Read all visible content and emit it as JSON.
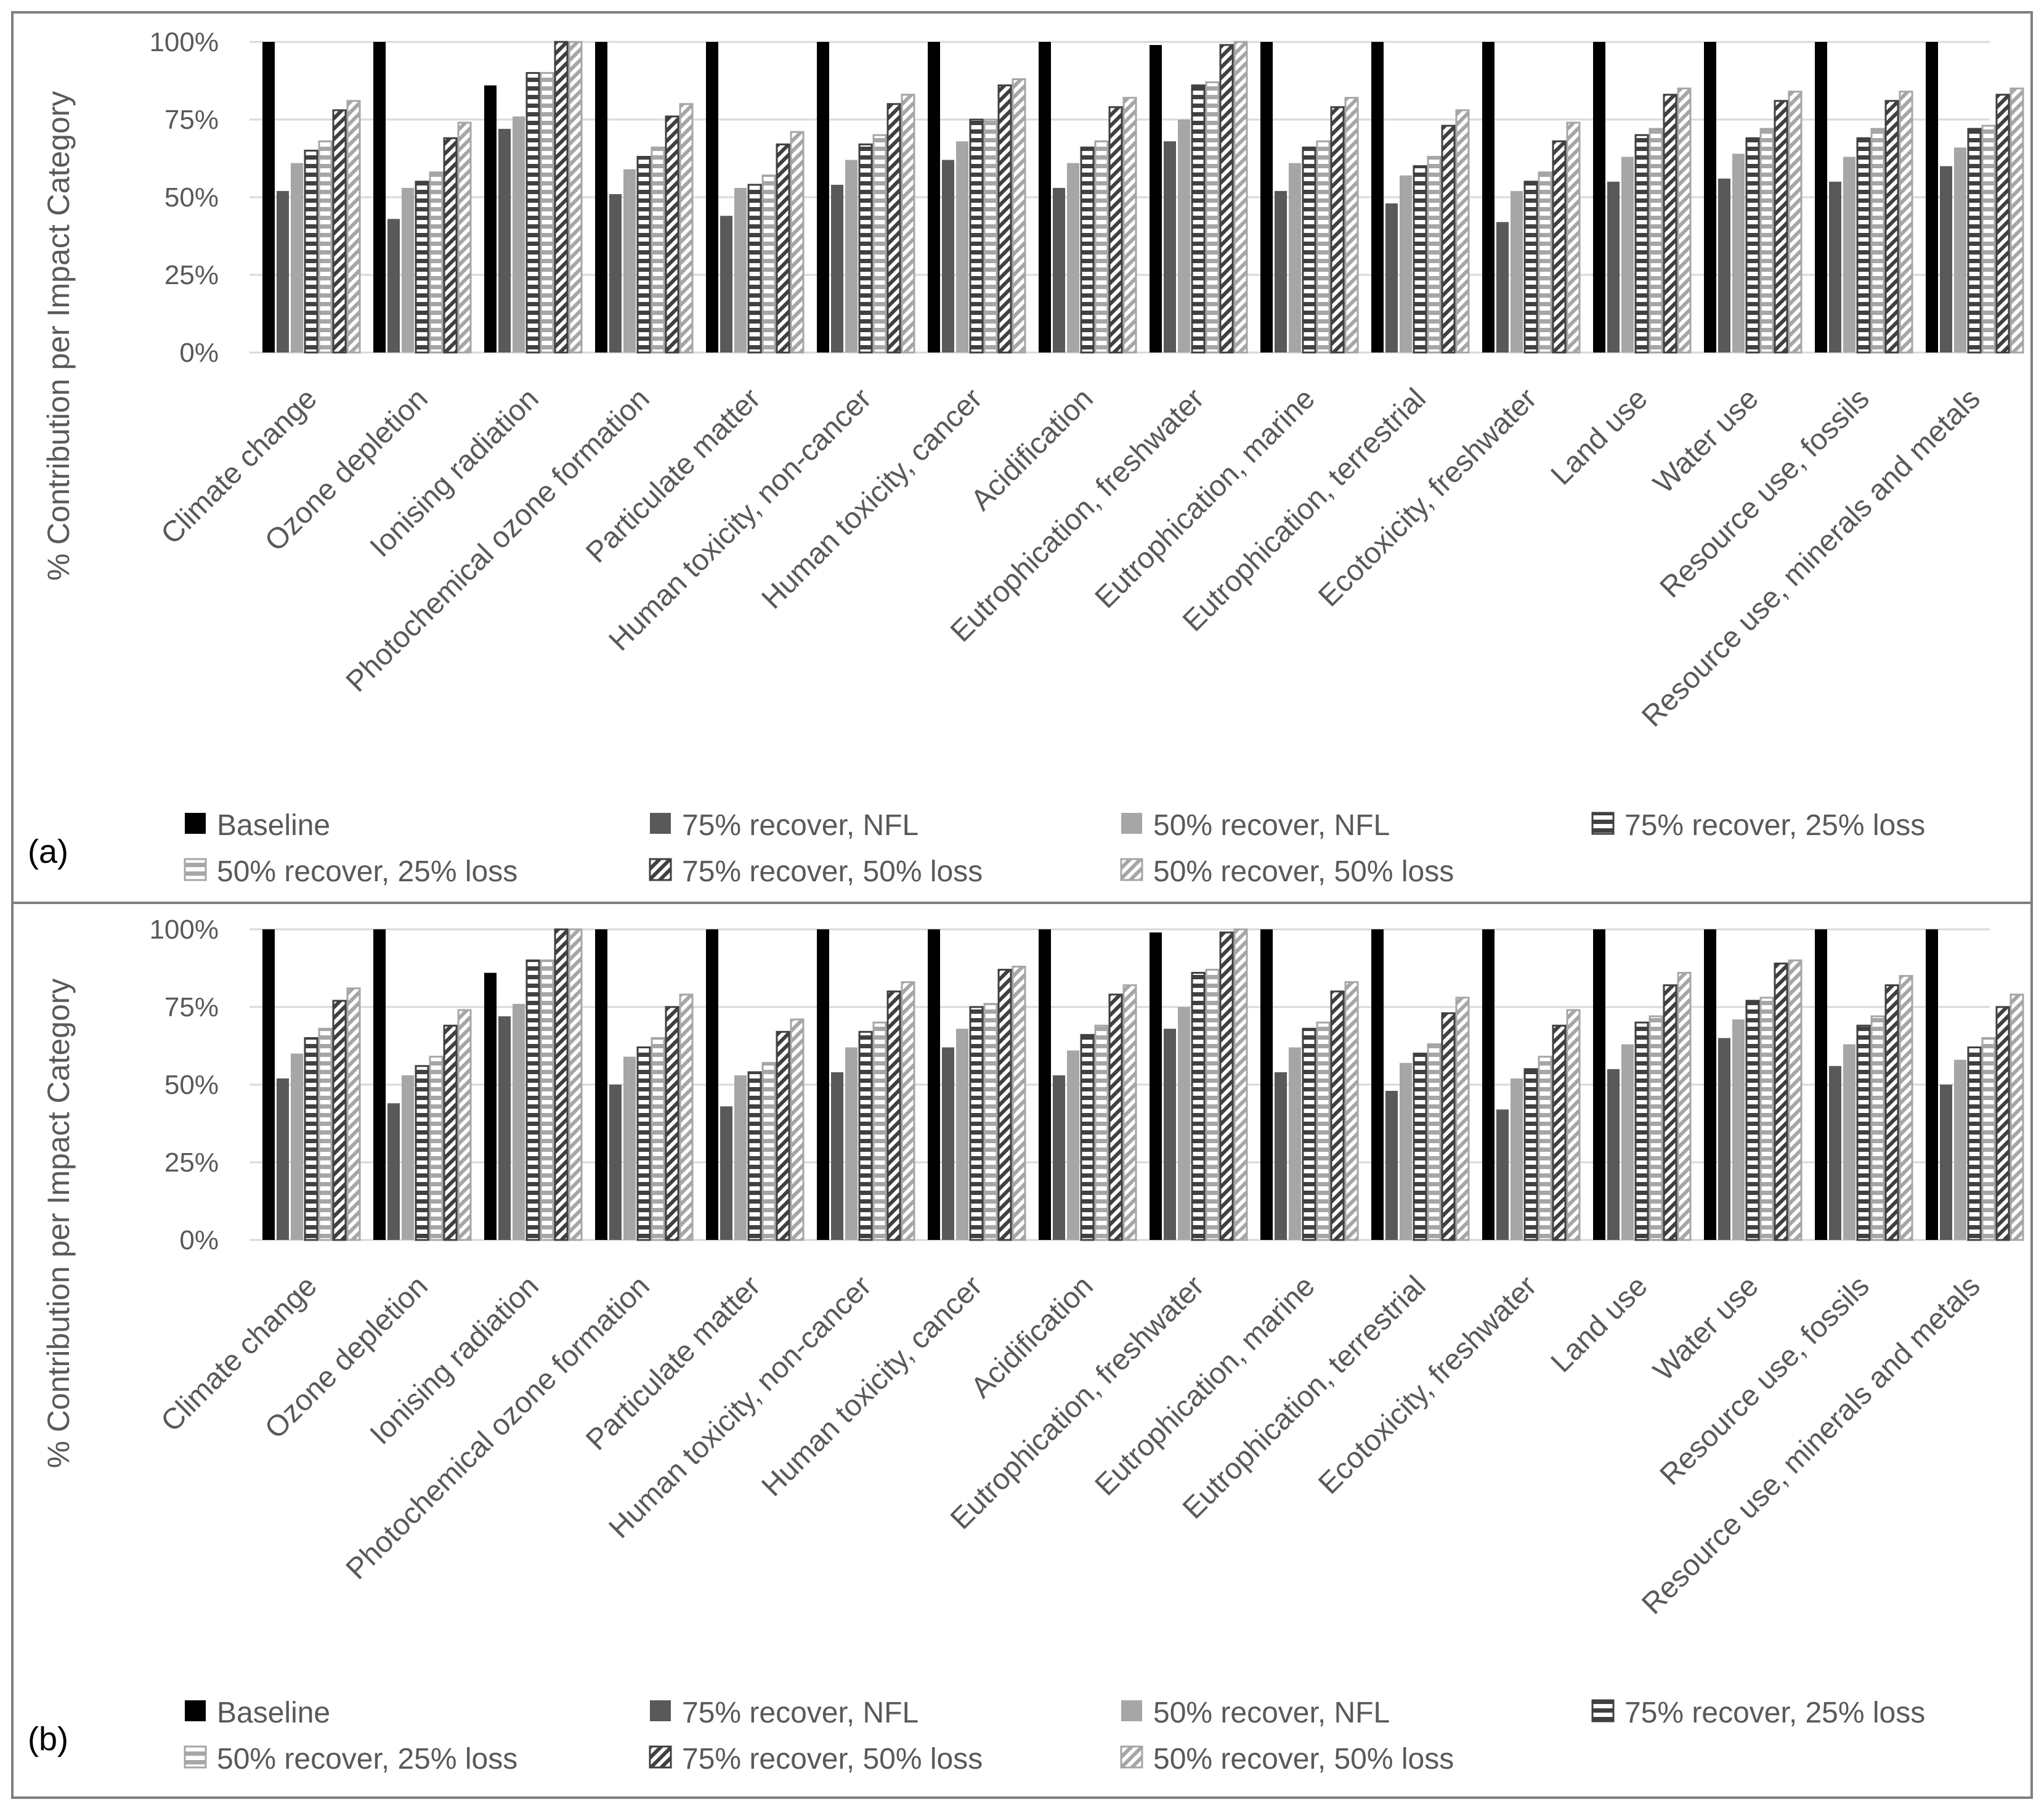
{
  "legend_items": [
    {
      "label": "Baseline",
      "style": "solid-black"
    },
    {
      "label": "75% recover, NFL",
      "style": "solid-dark"
    },
    {
      "label": "50% recover, NFL",
      "style": "solid-light"
    },
    {
      "label": "75% recover, 25% loss",
      "style": "hstripe-dark"
    },
    {
      "label": "50% recover, 25% loss",
      "style": "hstripe-light"
    },
    {
      "label": "75% recover, 50% loss",
      "style": "diag-dark"
    },
    {
      "label": "50% recover, 50% loss",
      "style": "diag-light"
    }
  ],
  "colors": {
    "baseline": "#000000",
    "dark": "#595959",
    "light": "#a6a6a6",
    "stripe_dark": "#404040",
    "stripe_light": "#a6a6a6",
    "grid": "#d9d9d9",
    "text": "#595959",
    "frame": "#7f7f7f"
  },
  "chart_data": [
    {
      "type": "bar",
      "panel_label": "(a)",
      "ylabel": "% Contribution per Impact Category",
      "ylim": [
        0,
        100
      ],
      "yticks": [
        "0%",
        "25%",
        "50%",
        "75%",
        "100%"
      ],
      "categories": [
        "Climate change",
        "Ozone depletion",
        "Ionising radiation",
        "Photochemical ozone formation",
        "Particulate matter",
        "Human toxicity, non-cancer",
        "Human toxicity, cancer",
        "Acidification",
        "Eutrophication, freshwater",
        "Eutrophication, marine",
        "Eutrophication, terrestrial",
        "Ecotoxicity, freshwater",
        "Land use",
        "Water use",
        "Resource use, fossils",
        "Resource use, minerals and metals"
      ],
      "series": [
        {
          "name": "Baseline",
          "values": [
            100,
            100,
            86,
            100,
            100,
            100,
            100,
            100,
            99,
            100,
            100,
            100,
            100,
            100,
            100,
            100
          ]
        },
        {
          "name": "75% recover, NFL",
          "values": [
            52,
            43,
            72,
            51,
            44,
            54,
            62,
            53,
            68,
            52,
            48,
            42,
            55,
            56,
            55,
            60
          ]
        },
        {
          "name": "50% recover, NFL",
          "values": [
            61,
            53,
            76,
            59,
            53,
            62,
            68,
            61,
            75,
            61,
            57,
            52,
            63,
            64,
            63,
            66
          ]
        },
        {
          "name": "75% recover, 25% loss",
          "values": [
            65,
            55,
            90,
            63,
            54,
            67,
            75,
            66,
            86,
            66,
            60,
            55,
            70,
            69,
            69,
            72
          ]
        },
        {
          "name": "50% recover, 25% loss",
          "values": [
            68,
            58,
            90,
            66,
            57,
            70,
            75,
            68,
            87,
            68,
            63,
            58,
            72,
            72,
            72,
            73
          ]
        },
        {
          "name": "75% recover, 50% loss",
          "values": [
            78,
            69,
            100,
            76,
            67,
            80,
            86,
            79,
            99,
            79,
            73,
            68,
            83,
            81,
            81,
            83
          ]
        },
        {
          "name": "50% recover, 50% loss",
          "values": [
            81,
            74,
            100,
            80,
            71,
            83,
            88,
            82,
            100,
            82,
            78,
            74,
            85,
            84,
            84,
            85
          ]
        }
      ]
    },
    {
      "type": "bar",
      "panel_label": "(b)",
      "ylabel": "% Contribution per Impact Category",
      "ylim": [
        0,
        100
      ],
      "yticks": [
        "0%",
        "25%",
        "50%",
        "75%",
        "100%"
      ],
      "categories": [
        "Climate change",
        "Ozone depletion",
        "Ionising radiation",
        "Photochemical ozone formation",
        "Particulate matter",
        "Human toxicity, non-cancer",
        "Human toxicity, cancer",
        "Acidification",
        "Eutrophication, freshwater",
        "Eutrophication, marine",
        "Eutrophication, terrestrial",
        "Ecotoxicity, freshwater",
        "Land use",
        "Water use",
        "Resource use, fossils",
        "Resource use, minerals and metals"
      ],
      "series": [
        {
          "name": "Baseline",
          "values": [
            100,
            100,
            86,
            100,
            100,
            100,
            100,
            100,
            99,
            100,
            100,
            100,
            100,
            100,
            100,
            100
          ]
        },
        {
          "name": "75% recover, NFL",
          "values": [
            52,
            44,
            72,
            50,
            43,
            54,
            62,
            53,
            68,
            54,
            48,
            42,
            55,
            65,
            56,
            50
          ]
        },
        {
          "name": "50% recover, NFL",
          "values": [
            60,
            53,
            76,
            59,
            53,
            62,
            68,
            61,
            75,
            62,
            57,
            52,
            63,
            71,
            63,
            58
          ]
        },
        {
          "name": "75% recover, 25% loss",
          "values": [
            65,
            56,
            90,
            62,
            54,
            67,
            75,
            66,
            86,
            68,
            60,
            55,
            70,
            77,
            69,
            62
          ]
        },
        {
          "name": "50% recover, 25% loss",
          "values": [
            68,
            59,
            90,
            65,
            57,
            70,
            76,
            69,
            87,
            70,
            63,
            59,
            72,
            78,
            72,
            65
          ]
        },
        {
          "name": "75% recover, 50% loss",
          "values": [
            77,
            69,
            100,
            75,
            67,
            80,
            87,
            79,
            99,
            80,
            73,
            69,
            82,
            89,
            82,
            75
          ]
        },
        {
          "name": "50% recover, 50% loss",
          "values": [
            81,
            74,
            100,
            79,
            71,
            83,
            88,
            82,
            100,
            83,
            78,
            74,
            86,
            90,
            85,
            79
          ]
        }
      ]
    }
  ]
}
